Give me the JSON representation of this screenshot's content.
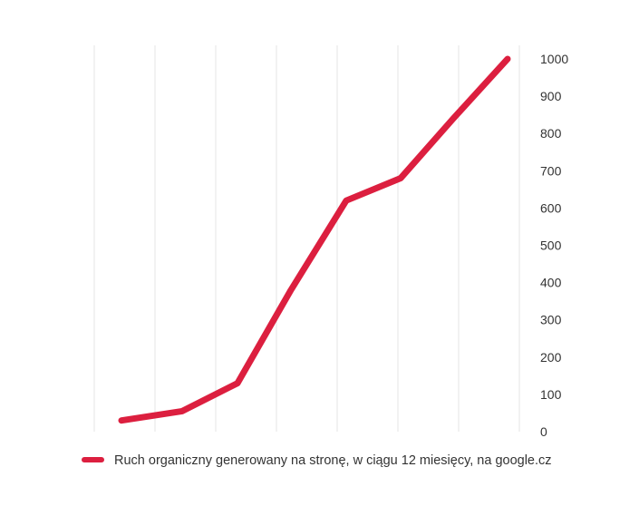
{
  "chart_data": {
    "type": "line",
    "x": [
      1,
      2,
      3,
      4,
      5,
      6,
      7,
      8
    ],
    "series": [
      {
        "name": "Ruch organiczny generowany na stronę, w ciągu 12 miesięcy, na google.cz",
        "values": [
          30,
          55,
          130,
          380,
          620,
          680,
          840,
          1000
        ],
        "color": "#dc1f3f"
      }
    ],
    "yticks": [
      0,
      100,
      200,
      300,
      400,
      500,
      600,
      700,
      800,
      900,
      1000
    ],
    "ylim": [
      0,
      1000
    ],
    "y_axis_position": "right",
    "grid": "vertical",
    "legend": "bottom"
  }
}
